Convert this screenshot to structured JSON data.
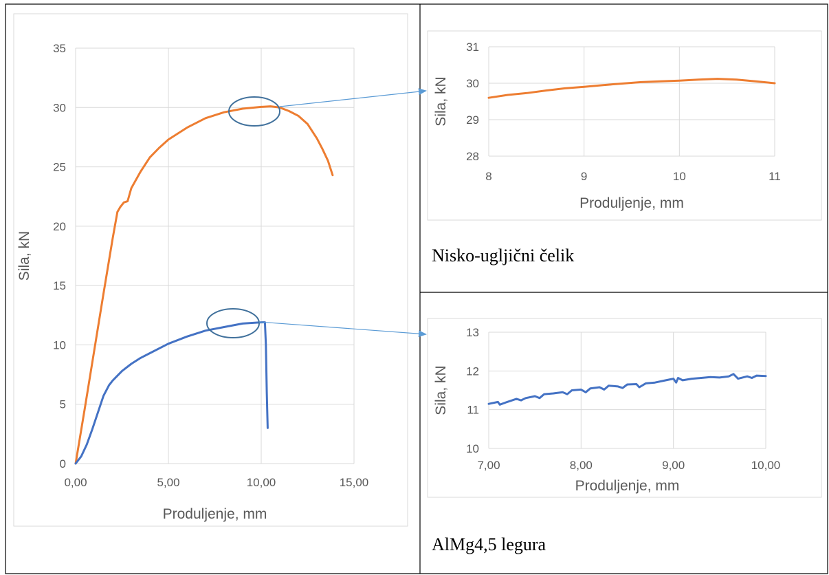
{
  "chart_data": [
    {
      "type": "line",
      "xlabel": "Produljenje, mm",
      "ylabel": "Sila, kN",
      "xlim": [
        0,
        15
      ],
      "ylim": [
        0,
        35
      ],
      "xticks": [
        "0,00",
        "5,00",
        "10,00",
        "15,00"
      ],
      "yticks": [
        "0",
        "5",
        "10",
        "15",
        "20",
        "25",
        "30",
        "35"
      ],
      "grid": true,
      "series": [
        {
          "color": "#ED7D31",
          "x": [
            0,
            0.5,
            1.0,
            1.5,
            2.0,
            2.25,
            2.4,
            2.6,
            2.8,
            3.0,
            3.5,
            4.0,
            4.5,
            5.0,
            6.0,
            7.0,
            8.0,
            9.0,
            10.0,
            10.5,
            11.0,
            11.5,
            12.0,
            12.5,
            13.0,
            13.3,
            13.6,
            13.85
          ],
          "y": [
            0,
            4.7,
            9.5,
            14.3,
            19.0,
            21.2,
            21.6,
            22.0,
            22.1,
            23.2,
            24.6,
            25.8,
            26.6,
            27.3,
            28.3,
            29.1,
            29.6,
            29.9,
            30.05,
            30.1,
            30.0,
            29.7,
            29.3,
            28.6,
            27.4,
            26.5,
            25.5,
            24.3
          ]
        },
        {
          "color": "#4472C4",
          "x": [
            0,
            0.3,
            0.6,
            0.9,
            1.2,
            1.5,
            1.8,
            2.0,
            2.5,
            3.0,
            3.5,
            4.0,
            5.0,
            6.0,
            7.0,
            8.0,
            9.0,
            9.5,
            10.0,
            10.2,
            10.25,
            10.3,
            10.35
          ],
          "y": [
            0,
            0.6,
            1.6,
            2.9,
            4.3,
            5.7,
            6.6,
            7.0,
            7.8,
            8.4,
            8.9,
            9.3,
            10.1,
            10.7,
            11.2,
            11.5,
            11.8,
            11.85,
            11.9,
            11.9,
            10.0,
            6.0,
            3.0
          ]
        }
      ]
    },
    {
      "type": "line",
      "xlabel": "Produljenje, mm",
      "ylabel": "Sila, kN",
      "xlim": [
        8,
        11
      ],
      "ylim": [
        28,
        31
      ],
      "xticks": [
        "8",
        "9",
        "10",
        "11"
      ],
      "yticks": [
        "28",
        "29",
        "30",
        "31"
      ],
      "grid": true,
      "caption": "Nisko-ugljični čelik",
      "series": [
        {
          "color": "#ED7D31",
          "x": [
            8.0,
            8.2,
            8.4,
            8.6,
            8.8,
            9.0,
            9.2,
            9.4,
            9.6,
            9.8,
            10.0,
            10.2,
            10.4,
            10.6,
            10.8,
            11.0
          ],
          "y": [
            29.6,
            29.68,
            29.73,
            29.8,
            29.86,
            29.9,
            29.95,
            29.99,
            30.03,
            30.05,
            30.07,
            30.1,
            30.12,
            30.1,
            30.05,
            30.0
          ]
        }
      ]
    },
    {
      "type": "line",
      "xlabel": "Produljenje, mm",
      "ylabel": "Sila, kN",
      "xlim": [
        7,
        10
      ],
      "ylim": [
        10,
        13
      ],
      "xticks": [
        "7,00",
        "8,00",
        "9,00",
        "10,00"
      ],
      "yticks": [
        "10",
        "11",
        "12",
        "13"
      ],
      "grid": true,
      "caption": "AlMg4,5 legura",
      "series": [
        {
          "color": "#4472C4",
          "x": [
            7.0,
            7.1,
            7.12,
            7.2,
            7.3,
            7.35,
            7.4,
            7.5,
            7.55,
            7.6,
            7.7,
            7.8,
            7.85,
            7.9,
            8.0,
            8.05,
            8.1,
            8.2,
            8.25,
            8.3,
            8.4,
            8.45,
            8.5,
            8.6,
            8.63,
            8.7,
            8.8,
            8.9,
            9.0,
            9.03,
            9.05,
            9.1,
            9.2,
            9.3,
            9.4,
            9.5,
            9.6,
            9.65,
            9.7,
            9.8,
            9.85,
            9.9,
            10.0
          ],
          "y": [
            11.15,
            11.2,
            11.13,
            11.2,
            11.28,
            11.24,
            11.3,
            11.35,
            11.3,
            11.4,
            11.42,
            11.45,
            11.4,
            11.5,
            11.52,
            11.45,
            11.55,
            11.58,
            11.52,
            11.62,
            11.6,
            11.56,
            11.65,
            11.66,
            11.58,
            11.68,
            11.7,
            11.75,
            11.8,
            11.7,
            11.82,
            11.76,
            11.8,
            11.82,
            11.84,
            11.83,
            11.86,
            11.92,
            11.8,
            11.86,
            11.82,
            11.88,
            11.87
          ]
        }
      ]
    }
  ]
}
